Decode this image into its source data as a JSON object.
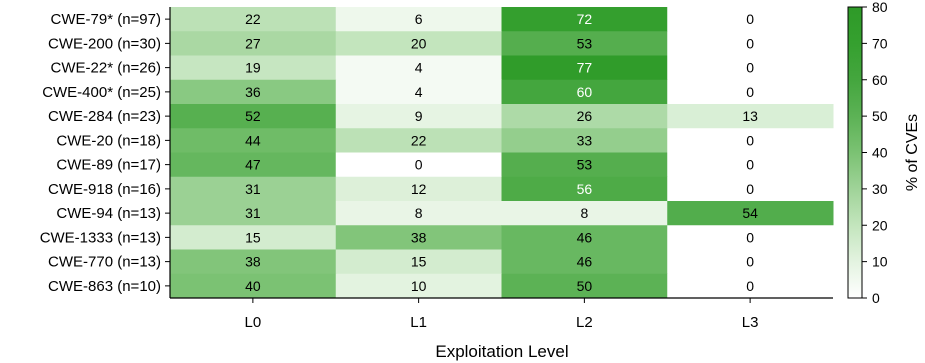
{
  "chart_data": {
    "type": "heatmap",
    "xlabel": "Exploitation Level",
    "columns": [
      "L0",
      "L1",
      "L2",
      "L3"
    ],
    "rows": [
      {
        "label": "CWE-79* (n=97)",
        "values": [
          22,
          6,
          72,
          0
        ]
      },
      {
        "label": "CWE-200 (n=30)",
        "values": [
          27,
          20,
          53,
          0
        ]
      },
      {
        "label": "CWE-22* (n=26)",
        "values": [
          19,
          4,
          77,
          0
        ]
      },
      {
        "label": "CWE-400* (n=25)",
        "values": [
          36,
          4,
          60,
          0
        ]
      },
      {
        "label": "CWE-284 (n=23)",
        "values": [
          52,
          9,
          26,
          13
        ]
      },
      {
        "label": "CWE-20 (n=18)",
        "values": [
          44,
          22,
          33,
          0
        ]
      },
      {
        "label": "CWE-89 (n=17)",
        "values": [
          47,
          0,
          53,
          0
        ]
      },
      {
        "label": "CWE-918 (n=16)",
        "values": [
          31,
          12,
          56,
          0
        ]
      },
      {
        "label": "CWE-94 (n=13)",
        "values": [
          31,
          8,
          8,
          54
        ]
      },
      {
        "label": "CWE-1333 (n=13)",
        "values": [
          15,
          38,
          46,
          0
        ]
      },
      {
        "label": "CWE-770 (n=13)",
        "values": [
          38,
          15,
          46,
          0
        ]
      },
      {
        "label": "CWE-863 (n=10)",
        "values": [
          40,
          10,
          50,
          0
        ]
      }
    ],
    "colorbar": {
      "label": "% of CVEs",
      "min": 0,
      "max": 80,
      "ticks": [
        0,
        10,
        20,
        30,
        40,
        50,
        60,
        70,
        80
      ],
      "colors": [
        "#ffffff",
        "#e3f3e0",
        "#c3e5bd",
        "#9fd398",
        "#7bc273",
        "#5cb255",
        "#44a63e",
        "#35a02f",
        "#2e9a28"
      ]
    },
    "label_color_threshold": 55,
    "label_colors": {
      "dark": "#000000",
      "light": "#ffffff"
    }
  }
}
